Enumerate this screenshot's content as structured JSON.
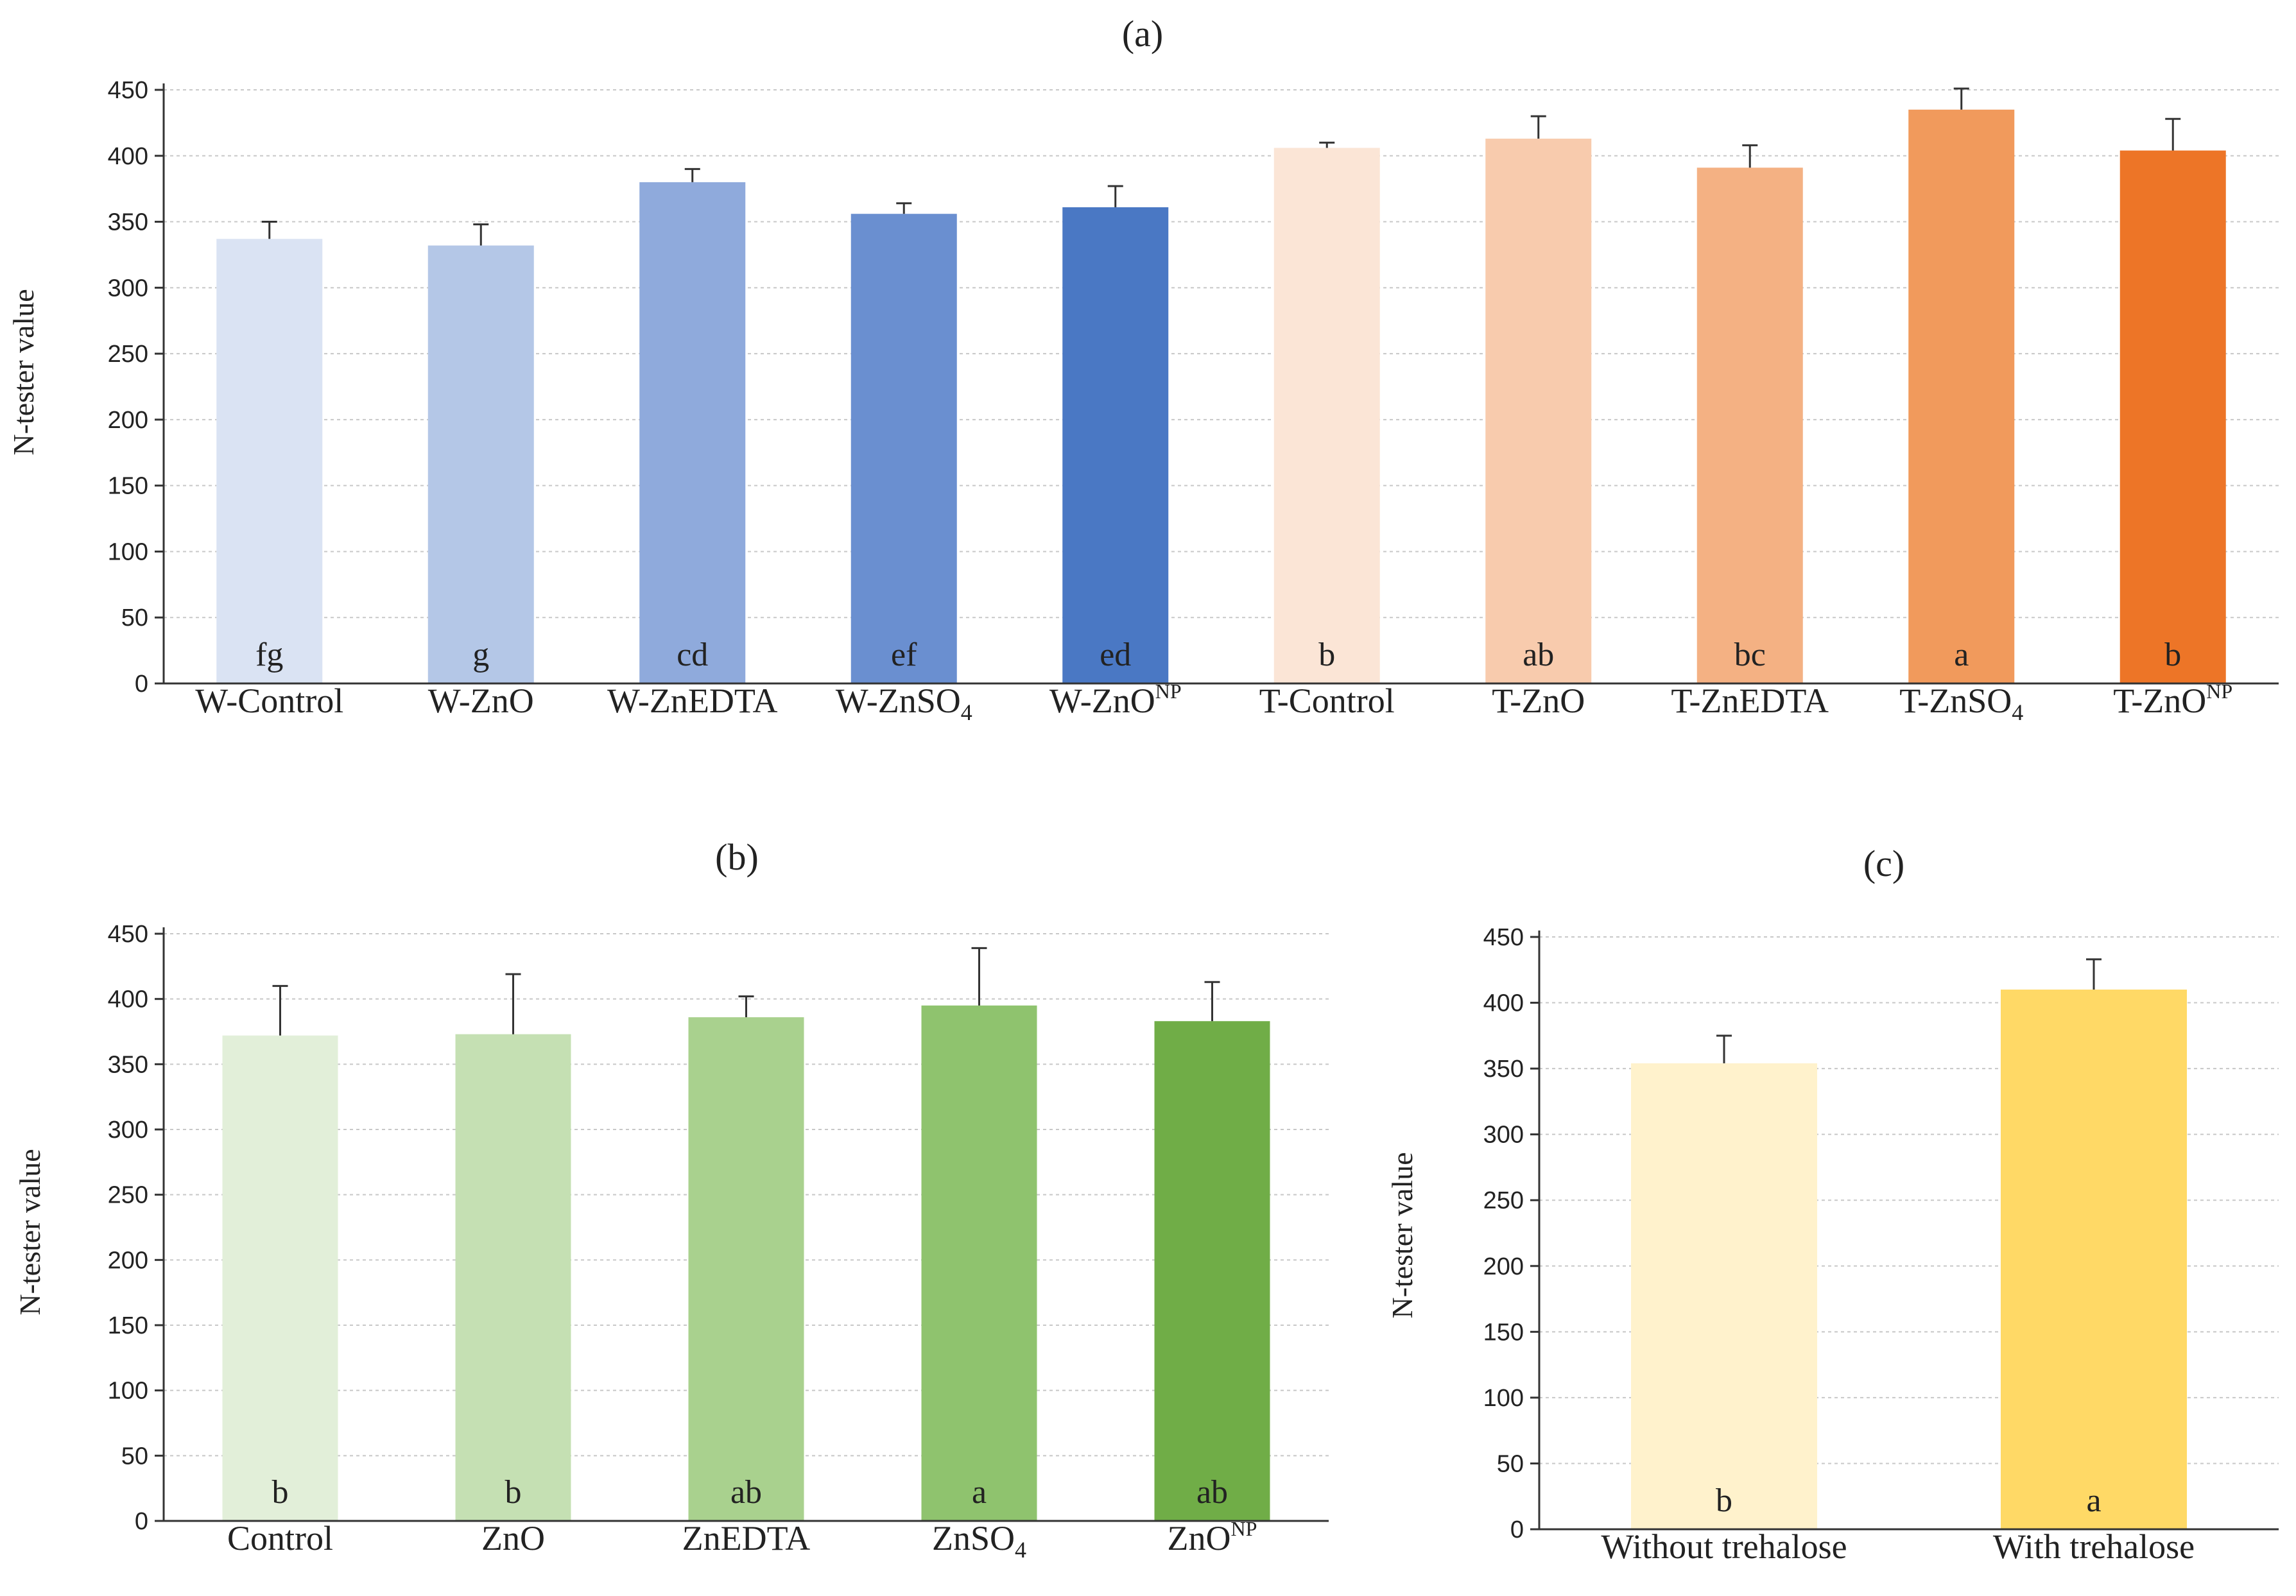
{
  "chart_data": [
    {
      "type": "bar",
      "id": "a",
      "title": "(a)",
      "ylabel": "N-tester value",
      "ylim": [
        0,
        450
      ],
      "yticks": [
        0,
        50,
        100,
        150,
        200,
        250,
        300,
        350,
        400,
        450
      ],
      "categories": [
        {
          "base": "W-Control",
          "sub": "",
          "sup": ""
        },
        {
          "base": "W-ZnO",
          "sub": "",
          "sup": ""
        },
        {
          "base": "W-ZnEDTA",
          "sub": "",
          "sup": ""
        },
        {
          "base": "W-ZnSO",
          "sub": "4",
          "sup": ""
        },
        {
          "base": "W-ZnO",
          "sub": "",
          "sup": "NP"
        },
        {
          "base": "T-Control",
          "sub": "",
          "sup": ""
        },
        {
          "base": "T-ZnO",
          "sub": "",
          "sup": ""
        },
        {
          "base": "T-ZnEDTA",
          "sub": "",
          "sup": ""
        },
        {
          "base": "T-ZnSO",
          "sub": "4",
          "sup": ""
        },
        {
          "base": "T-ZnO",
          "sub": "",
          "sup": "NP"
        }
      ],
      "values": [
        337,
        332,
        380,
        356,
        361,
        406,
        413,
        391,
        435,
        404
      ],
      "errors": [
        13,
        16,
        10,
        8,
        16,
        4,
        17,
        17,
        16,
        24
      ],
      "letters": [
        "fg",
        "g",
        "cd",
        "ef",
        "ed",
        "b",
        "ab",
        "bc",
        "a",
        "b"
      ],
      "colors": [
        "#dae3f3",
        "#b4c7e7",
        "#8faadc",
        "#6a8fd0",
        "#4a78c4",
        "#fbe5d6",
        "#f8cbad",
        "#f4b183",
        "#f19a5c",
        "#ed7527"
      ]
    },
    {
      "type": "bar",
      "id": "b",
      "title": "(b)",
      "ylabel": "N-tester value",
      "ylim": [
        0,
        450
      ],
      "yticks": [
        0,
        50,
        100,
        150,
        200,
        250,
        300,
        350,
        400,
        450
      ],
      "categories": [
        {
          "base": "Control",
          "sub": "",
          "sup": ""
        },
        {
          "base": "ZnO",
          "sub": "",
          "sup": ""
        },
        {
          "base": "ZnEDTA",
          "sub": "",
          "sup": ""
        },
        {
          "base": "ZnSO",
          "sub": "4",
          "sup": ""
        },
        {
          "base": "ZnO",
          "sub": "",
          "sup": "NP"
        }
      ],
      "values": [
        372,
        373,
        386,
        395,
        383
      ],
      "errors": [
        38,
        46,
        16,
        44,
        30
      ],
      "letters": [
        "b",
        "b",
        "ab",
        "a",
        "ab"
      ],
      "colors": [
        "#e2efd9",
        "#c5e0b3",
        "#a9d18e",
        "#8fc36e",
        "#70ad47"
      ]
    },
    {
      "type": "bar",
      "id": "c",
      "title": "(c)",
      "ylabel": "N-tester value",
      "ylim": [
        0,
        450
      ],
      "yticks": [
        0,
        50,
        100,
        150,
        200,
        250,
        300,
        350,
        400,
        450
      ],
      "categories": [
        {
          "base": "Without trehalose",
          "sub": "",
          "sup": ""
        },
        {
          "base": "With trehalose",
          "sub": "",
          "sup": ""
        }
      ],
      "values": [
        354,
        410
      ],
      "errors": [
        21,
        23
      ],
      "letters": [
        "b",
        "a"
      ],
      "colors": [
        "#fff2cc",
        "#ffd966"
      ]
    }
  ]
}
